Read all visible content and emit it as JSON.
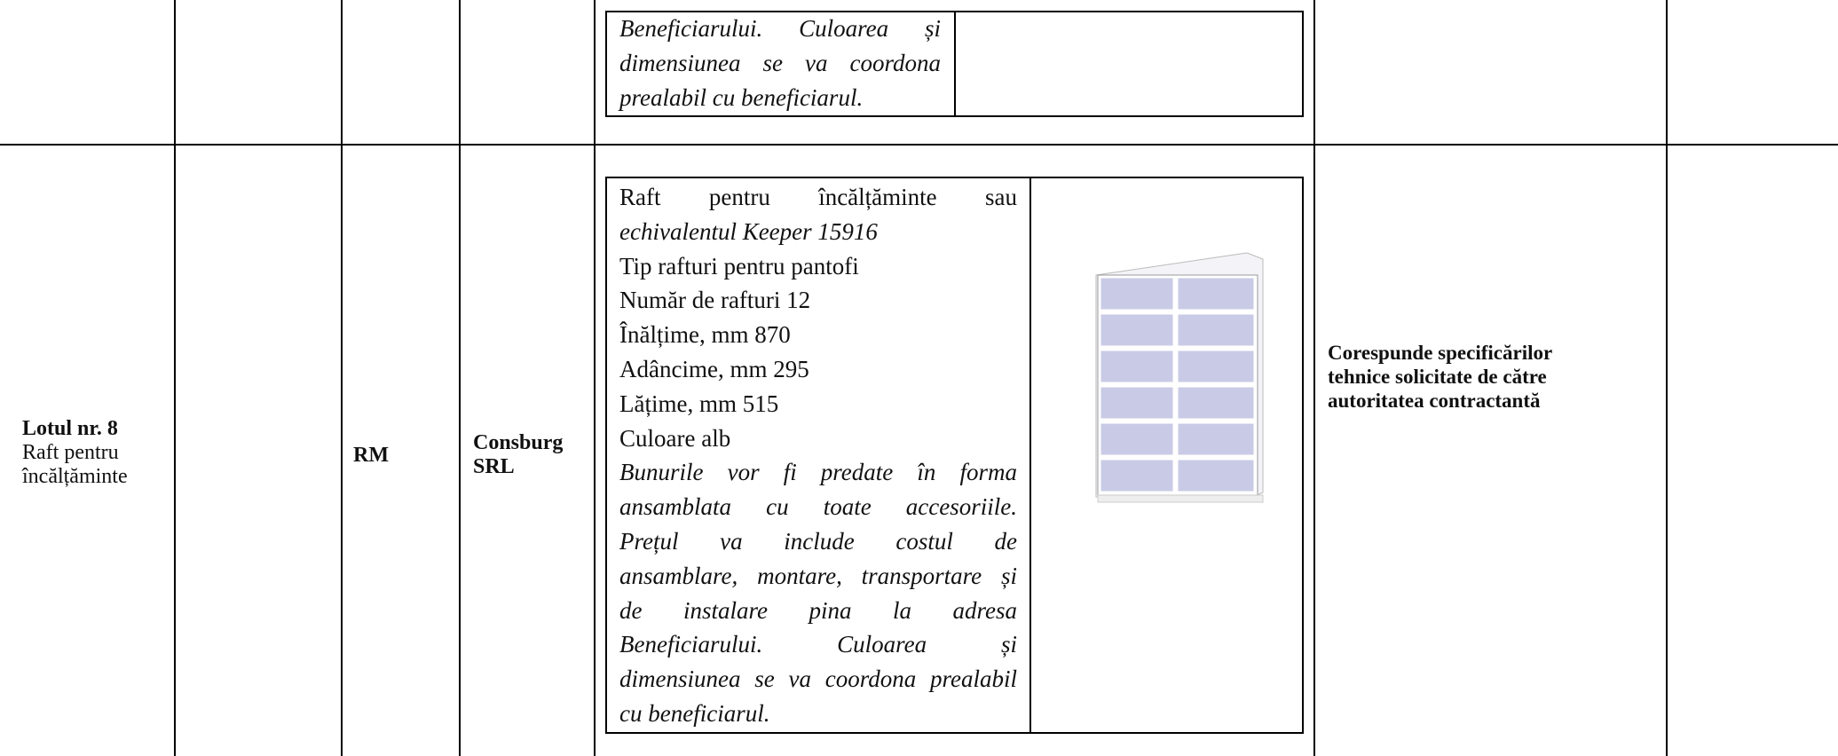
{
  "row_1": {
    "description_lines": [
      "Beneficiarului. Culoarea și",
      "dimensiunea se va coordona",
      "prealabil cu beneficiarul."
    ]
  },
  "row_2": {
    "lot_number": "Lotul nr. 8",
    "lot_name": "Raft pentru încălțăminte",
    "origin": "RM",
    "supplier": "Consburg SRL",
    "description": {
      "heading": "Raft pentru încălțăminte sau",
      "model": "echivalentul Keeper 15916",
      "specs": [
        "Tip rafturi pentru pantofi",
        "Număr de rafturi 12",
        "Înălțime, mm 870",
        "Adâncime, mm 295",
        "Lățime, mm 515",
        "Culoare alb"
      ],
      "note_lines": [
        "Bunurile vor fi predate în forma",
        "ansamblata cu toate accesoriile.",
        "Prețul va include costul de",
        "ansamblare, montare, transportare și",
        "de instalare pina la adresa",
        "Beneficiarului. Culoarea și",
        "dimensiunea se va coordona prealabil",
        "cu beneficiarul."
      ]
    },
    "assessment": "Corespunde specificărilor tehnice solicitate de către autoritatea contractantă"
  }
}
